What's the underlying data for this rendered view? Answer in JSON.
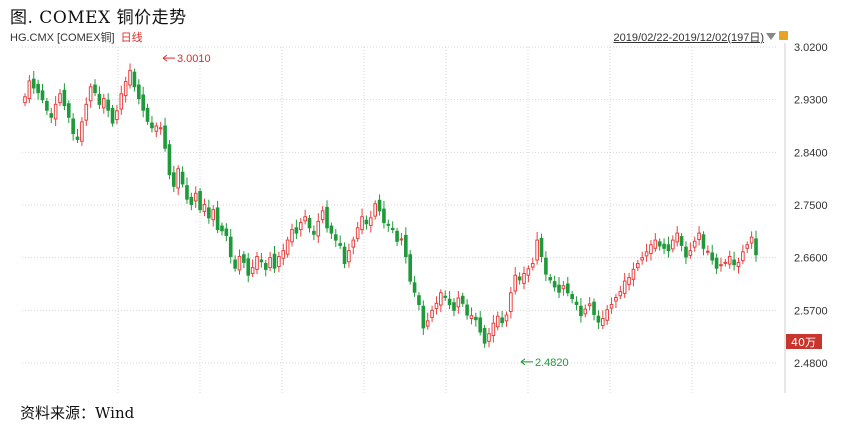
{
  "figure_title": "图. COMEX 铜价走势",
  "source": "资料来源：Wind",
  "header": {
    "symbol": "HG.CMX [COMEX铜]",
    "period": "日线",
    "range": "2019/02/22-2019/12/02(197日)",
    "dropdown_icon": "chevron-down-icon",
    "lock_icon": "lock-icon"
  },
  "colors": {
    "up": "#e84040",
    "down": "#1f9a3a",
    "grid": "#d6d6d6",
    "annotation_max": "#d9302c",
    "annotation_min": "#1f9a3a",
    "volume_badge": "#c7352c"
  },
  "volume_badge": "40万",
  "chart_data": {
    "type": "candlestick",
    "title": "",
    "xlabel": "",
    "ylabel": "",
    "ylim": [
      2.45,
      3.04
    ],
    "yticks": [
      "3.0200",
      "2.9300",
      "2.8400",
      "2.7500",
      "2.6600",
      "2.5700",
      "2.4800"
    ],
    "grid": true,
    "annotations": [
      {
        "label": "3.0010",
        "value": 3.001,
        "kind": "max"
      },
      {
        "label": "2.4820",
        "value": 2.482,
        "kind": "min"
      }
    ],
    "close_trajectory": [
      2.935,
      2.962,
      2.95,
      2.942,
      2.93,
      2.912,
      2.9,
      2.922,
      2.94,
      2.92,
      2.9,
      2.872,
      2.862,
      2.892,
      2.922,
      2.952,
      2.942,
      2.922,
      2.932,
      2.912,
      2.89,
      2.911,
      2.94,
      2.961,
      2.98,
      2.952,
      2.932,
      2.912,
      2.893,
      2.882,
      2.885,
      2.882,
      2.847,
      2.802,
      2.782,
      2.812,
      2.786,
      2.76,
      2.751,
      2.77,
      2.742,
      2.751,
      2.728,
      2.742,
      2.708,
      2.706,
      2.698,
      2.662,
      2.642,
      2.662,
      2.652,
      2.63,
      2.643,
      2.662,
      2.653,
      2.64,
      2.66,
      2.642,
      2.662,
      2.672,
      2.69,
      2.708,
      2.702,
      2.72,
      2.73,
      2.711,
      2.7,
      2.722,
      2.74,
      2.711,
      2.702,
      2.69,
      2.681,
      2.65,
      2.672,
      2.69,
      2.711,
      2.73,
      2.718,
      2.728,
      2.752,
      2.74,
      2.72,
      2.716,
      2.708,
      2.688,
      2.692,
      2.662,
      2.62,
      2.601,
      2.58,
      2.54,
      2.552,
      2.57,
      2.582,
      2.6,
      2.592,
      2.58,
      2.57,
      2.591,
      2.582,
      2.562,
      2.561,
      2.554,
      2.533,
      2.514,
      2.53,
      2.548,
      2.56,
      2.549,
      2.562,
      2.6,
      2.63,
      2.622,
      2.633,
      2.641,
      2.65,
      2.69,
      2.662,
      2.632,
      2.622,
      2.61,
      2.601,
      2.612,
      2.6,
      2.59,
      2.58,
      2.561,
      2.572,
      2.581,
      2.563,
      2.55,
      2.556,
      2.571,
      2.58,
      2.592,
      2.602,
      2.62,
      2.626,
      2.64,
      2.65,
      2.66,
      2.67,
      2.682,
      2.69,
      2.68,
      2.676,
      2.672,
      2.69,
      2.702,
      2.681,
      2.661,
      2.672,
      2.688,
      2.702,
      2.676,
      2.671,
      2.656,
      2.642,
      2.648,
      2.652,
      2.662,
      2.648,
      2.652,
      2.67,
      2.682,
      2.695,
      2.665
    ]
  }
}
